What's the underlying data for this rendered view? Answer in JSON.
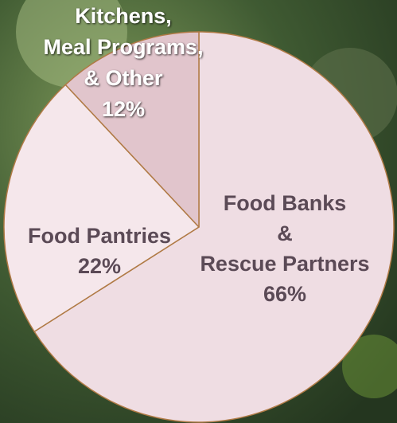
{
  "chart_data": {
    "type": "pie",
    "categories": [
      [
        "Food Banks",
        "&",
        "Rescue Partners"
      ],
      [
        "Food Pantries"
      ],
      [
        "Kitchens,",
        "Meal Programs,",
        "& Other"
      ]
    ],
    "values": [
      66,
      22,
      12
    ],
    "value_labels": [
      "66%",
      "22%",
      "12%"
    ],
    "colors": [
      "#efdde3",
      "#f5e7eb",
      "#e1c5cc"
    ]
  }
}
